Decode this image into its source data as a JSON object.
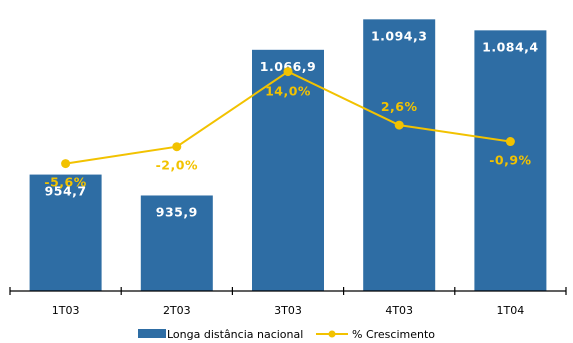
{
  "chart_data": {
    "type": "bar",
    "categories": [
      "1T03",
      "2T03",
      "3T03",
      "4T03",
      "1T04"
    ],
    "series": [
      {
        "name": "Longa distância nacional",
        "kind": "bar",
        "values": [
          954.7,
          935.9,
          1066.9,
          1094.3,
          1084.4
        ],
        "labels": [
          "954,7",
          "935,9",
          "1.066,9",
          "1.094,3",
          "1.084,4"
        ],
        "color": "#2e6da4"
      },
      {
        "name": "% Crescimento",
        "kind": "line",
        "values": [
          -5.6,
          -2.0,
          14.0,
          2.6,
          -0.9
        ],
        "labels": [
          "-5,6%",
          "-2,0%",
          "14,0%",
          "2,6%",
          "-0,9%"
        ],
        "color": "#f2c200"
      }
    ],
    "bar_axis_range": [
      850,
      1100
    ],
    "line_axis_range": [
      -40,
      25
    ],
    "grid": false,
    "legend_position": "bottom"
  }
}
